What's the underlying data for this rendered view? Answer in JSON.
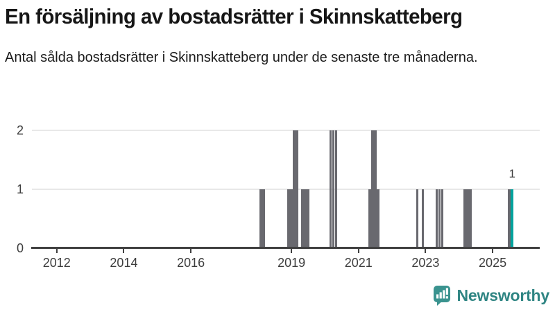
{
  "title": "En försäljning av bostadsrätter i Skinnskatteberg",
  "subtitle": "Antal sålda bostadsrätter i Skinnskatteberg under de senaste tre månaderna.",
  "branding": {
    "logo_text": "Newsworthy",
    "logo_icon": "newsworthy-speech-bubble-bar-chart-icon"
  },
  "colors": {
    "bar": "#69696f",
    "highlight": "#00a39d",
    "grid": "#e8e8e8",
    "axis": "#414141",
    "title_text": "#161616",
    "tick_label": "#3d3d3d",
    "value_label": "#3a3a3a",
    "logo": "#2f8583",
    "logo_icon_fill": "#3a938f",
    "background": "#ffffff"
  },
  "chart_data": {
    "type": "bar",
    "title": "En försäljning av bostadsrätter i Skinnskatteberg",
    "subtitle": "Antal sålda bostadsrätter i Skinnskatteberg under de senaste tre månaderna.",
    "xlabel": "",
    "ylabel": "",
    "unit": "antal sålda bostadsrätter (rullande tre månader)",
    "ylim": [
      0,
      2
    ],
    "y_ticks": [
      0,
      1,
      2
    ],
    "x_tick_years": [
      2012,
      2014,
      2016,
      2019,
      2021,
      2023,
      2025
    ],
    "x_range_years": [
      2011.25,
      2026.4
    ],
    "grid": "horizontal",
    "legend": "none",
    "all_other_months_value": 0,
    "points": [
      {
        "year": 2018,
        "month": 2,
        "value": 1
      },
      {
        "year": 2018,
        "month": 3,
        "value": 1
      },
      {
        "year": 2018,
        "month": 12,
        "value": 1
      },
      {
        "year": 2019,
        "month": 1,
        "value": 1
      },
      {
        "year": 2019,
        "month": 2,
        "value": 2
      },
      {
        "year": 2019,
        "month": 3,
        "value": 2
      },
      {
        "year": 2019,
        "month": 5,
        "value": 1
      },
      {
        "year": 2019,
        "month": 6,
        "value": 1
      },
      {
        "year": 2019,
        "month": 7,
        "value": 1
      },
      {
        "year": 2020,
        "month": 3,
        "value": 2
      },
      {
        "year": 2020,
        "month": 4,
        "value": 2
      },
      {
        "year": 2020,
        "month": 5,
        "value": 2
      },
      {
        "year": 2021,
        "month": 5,
        "value": 1
      },
      {
        "year": 2021,
        "month": 6,
        "value": 2
      },
      {
        "year": 2021,
        "month": 7,
        "value": 2
      },
      {
        "year": 2021,
        "month": 8,
        "value": 1
      },
      {
        "year": 2022,
        "month": 10,
        "value": 1
      },
      {
        "year": 2022,
        "month": 12,
        "value": 1
      },
      {
        "year": 2023,
        "month": 5,
        "value": 1
      },
      {
        "year": 2023,
        "month": 6,
        "value": 1
      },
      {
        "year": 2023,
        "month": 7,
        "value": 1
      },
      {
        "year": 2024,
        "month": 3,
        "value": 1
      },
      {
        "year": 2024,
        "month": 4,
        "value": 1
      },
      {
        "year": 2024,
        "month": 5,
        "value": 1
      },
      {
        "year": 2025,
        "month": 7,
        "value": 1
      },
      {
        "year": 2025,
        "month": 8,
        "value": 1,
        "highlight": true,
        "label": "1"
      }
    ]
  }
}
